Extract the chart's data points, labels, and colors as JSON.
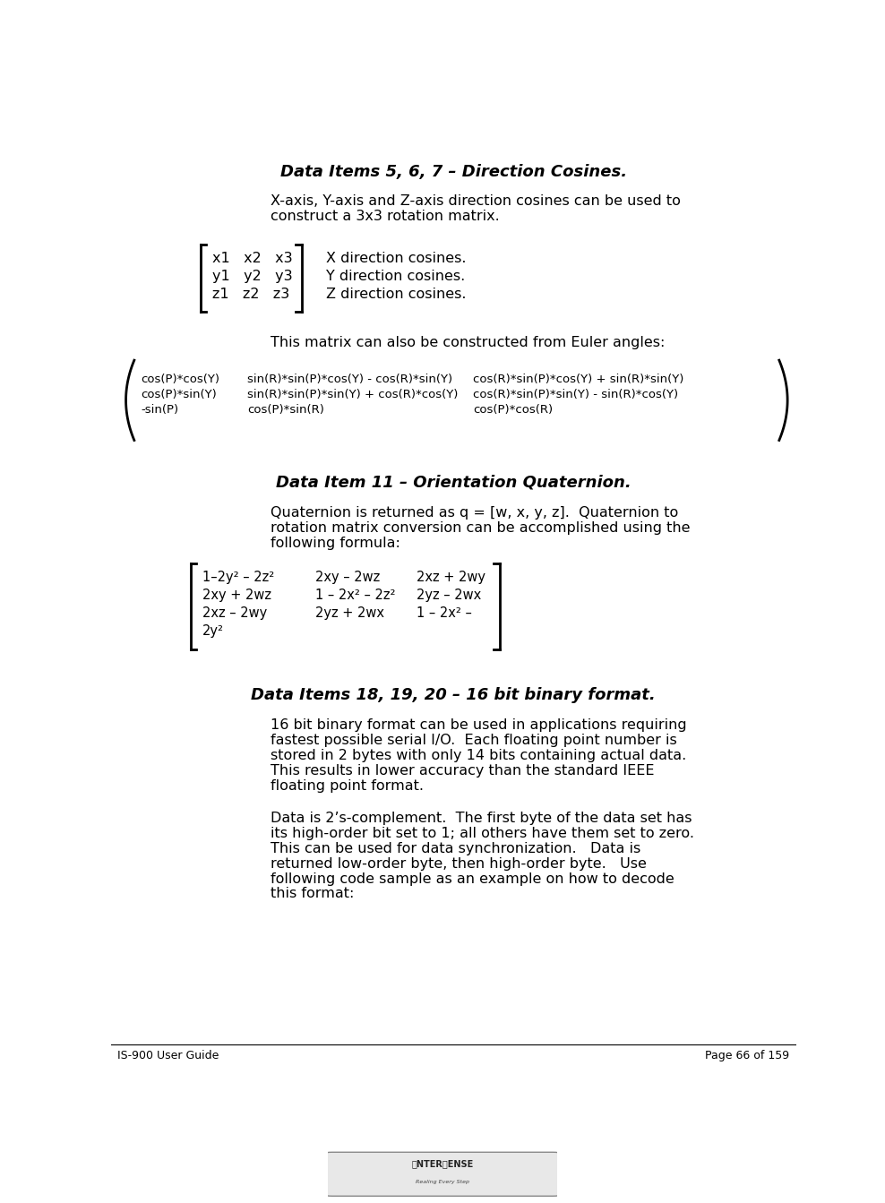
{
  "title1": "Data Items 5, 6, 7 – Direction Cosines.",
  "para1_line1": "X-axis, Y-axis and Z-axis direction cosines can be used to",
  "para1_line2": "construct a 3x3 rotation matrix.",
  "matrix1_rows": [
    "x1   x2   x3",
    "y1   y2   y3",
    "z1   z2   z3"
  ],
  "matrix1_labels": [
    "X direction cosines.",
    "Y direction cosines.",
    "Z direction cosines."
  ],
  "para2": "This matrix can also be constructed from Euler angles:",
  "euler_col1": [
    "cos(P)*cos(Y)",
    "cos(P)*sin(Y)",
    "-sin(P)"
  ],
  "euler_col2": [
    "sin(R)*sin(P)*cos(Y) - cos(R)*sin(Y)",
    "sin(R)*sin(P)*sin(Y) + cos(R)*cos(Y)",
    "cos(P)*sin(R)"
  ],
  "euler_col3": [
    "cos(R)*sin(P)*cos(Y) + sin(R)*sin(Y)",
    "cos(R)*sin(P)*sin(Y) - sin(R)*cos(Y)",
    "cos(P)*cos(R)"
  ],
  "title2": "Data Item 11 – Orientation Quaternion.",
  "para3_line1": "Quaternion is returned as q = [w, x, y, z].  Quaternion to",
  "para3_line2": "rotation matrix conversion can be accomplished using the",
  "para3_line3": "following formula:",
  "quat_col1": [
    "1–2y² – 2z²",
    "2xy + 2wz",
    "2xz – 2wy",
    "2y²"
  ],
  "quat_col2": [
    "2xy – 2wz",
    "1 – 2x² – 2z²",
    "2yz + 2wx",
    ""
  ],
  "quat_col3": [
    "2xz + 2wy",
    "2yz – 2wx",
    "1 – 2x² –",
    ""
  ],
  "title3": "Data Items 18, 19, 20 – 16 bit binary format.",
  "para4_lines": [
    "16 bit binary format can be used in applications requiring",
    "fastest possible serial I/O.  Each floating point number is",
    "stored in 2 bytes with only 14 bits containing actual data.",
    "This results in lower accuracy than the standard IEEE",
    "floating point format."
  ],
  "para5_lines": [
    "Data is 2’s-complement.  The first byte of the data set has",
    "its high-order bit set to 1; all others have them set to zero.",
    "This can be used for data synchronization.   Data is",
    "returned low-order byte, then high-order byte.   Use",
    "following code sample as an example on how to decode",
    "this format:"
  ],
  "footer_left": "IS-900 User Guide",
  "footer_right": "Page 66 of 159",
  "bg_color": "#ffffff",
  "text_color": "#000000",
  "font_size_body": 11.5,
  "font_size_title": 13,
  "font_size_matrix": 10.5,
  "font_size_footer": 9
}
